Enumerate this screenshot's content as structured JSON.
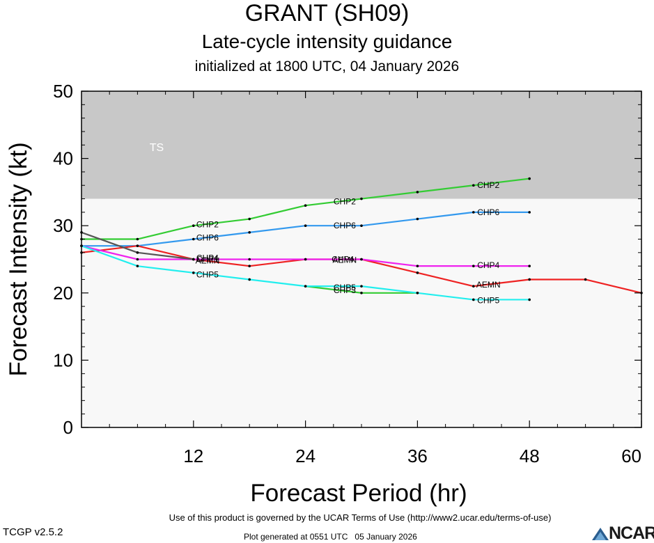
{
  "page": {
    "title": "GRANT (SH09)",
    "subtitle": "Late-cycle intensity guidance",
    "initialized": "initialized at 1800 UTC, 04 January 2026",
    "terms": "Use of this product is governed by the UCAR Terms of Use (http://www2.ucar.edu/terms-of-use)",
    "version": "TCGP v2.5.2",
    "generated": "Plot generated at 0551 UTC   05 January 2026",
    "logo_text": "NCAR"
  },
  "chart_data": {
    "type": "line",
    "xlabel": "Forecast Period (hr)",
    "ylabel": "Forecast Intensity (kt)",
    "xlim": [
      0,
      60
    ],
    "ylim": [
      0,
      50
    ],
    "xticks": [
      12,
      24,
      36,
      48,
      60
    ],
    "yticks": [
      0,
      10,
      20,
      30,
      40,
      50
    ],
    "bands": [
      {
        "label": "TS",
        "from": 34,
        "to": 50,
        "color": "#c8c8c8"
      },
      {
        "label": "",
        "from": 0,
        "to": 34,
        "color": "#f8f8f8"
      }
    ],
    "series": [
      {
        "name": "CHP2",
        "color": "#33cc33",
        "x": [
          0,
          6,
          12,
          18,
          24,
          30,
          36,
          42,
          48
        ],
        "y": [
          28,
          28,
          30,
          31,
          33,
          34,
          35,
          36,
          37
        ],
        "labels": [
          {
            "x": 13.5,
            "y": 30.2
          },
          {
            "x": 28.2,
            "y": 33.6
          },
          {
            "x": 43.6,
            "y": 36.0
          }
        ]
      },
      {
        "name": "CHP6",
        "color": "#3399ee",
        "x": [
          0,
          6,
          12,
          18,
          24,
          30,
          36,
          42,
          48
        ],
        "y": [
          27,
          27,
          28,
          29,
          30,
          30,
          31,
          32,
          32
        ],
        "labels": [
          {
            "x": 13.5,
            "y": 28.2
          },
          {
            "x": 28.2,
            "y": 30.0
          },
          {
            "x": 43.6,
            "y": 32.0
          }
        ]
      },
      {
        "name": "AEMN",
        "color": "#ee2222",
        "x": [
          0,
          6,
          12,
          18,
          24,
          30,
          36,
          42,
          48,
          54,
          60
        ],
        "y": [
          26,
          27,
          25,
          24,
          25,
          25,
          23,
          21,
          22,
          22,
          20
        ],
        "labels": [
          {
            "x": 13.5,
            "y": 24.8
          },
          {
            "x": 28.2,
            "y": 24.9
          },
          {
            "x": 43.6,
            "y": 21.2
          }
        ]
      },
      {
        "name": "CHP4",
        "color": "#ee22ee",
        "x": [
          0,
          6,
          12,
          18,
          24,
          30,
          36,
          42,
          48
        ],
        "y": [
          27,
          25,
          25,
          25,
          25,
          25,
          24,
          24,
          24
        ],
        "labels": [
          {
            "x": 13.5,
            "y": 25.2
          },
          {
            "x": 28.0,
            "y": 25.0
          },
          {
            "x": 43.6,
            "y": 24.1
          }
        ]
      },
      {
        "name": "CHP1",
        "color": "#555555",
        "x": [
          0,
          6,
          12
        ],
        "y": [
          29,
          26,
          25
        ],
        "labels": [
          {
            "x": 13.5,
            "y": 25.0
          }
        ]
      },
      {
        "name": "CHP3",
        "color": "#33cc33",
        "x": [
          24,
          30,
          36
        ],
        "y": [
          21,
          20,
          20
        ],
        "labels": [
          {
            "x": 28.2,
            "y": 20.4
          }
        ]
      },
      {
        "name": "CHP5",
        "color": "#22eeee",
        "x": [
          0,
          6,
          12,
          18,
          24,
          30,
          36,
          42,
          48
        ],
        "y": [
          27,
          24,
          23,
          22,
          21,
          21,
          20,
          19,
          19
        ],
        "labels": [
          {
            "x": 13.5,
            "y": 22.7
          },
          {
            "x": 28.2,
            "y": 20.8
          },
          {
            "x": 43.6,
            "y": 18.9
          }
        ]
      }
    ]
  }
}
